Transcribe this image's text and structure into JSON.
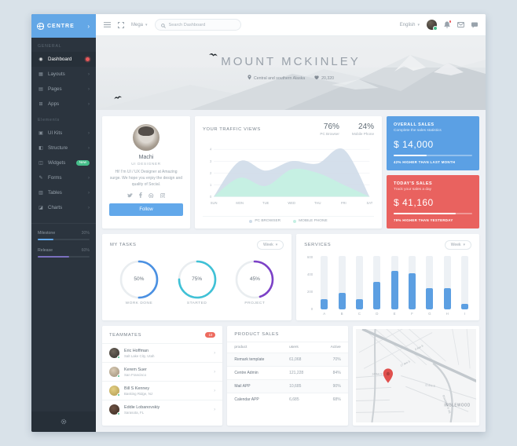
{
  "app": {
    "name": "CENTRE"
  },
  "sidebar": {
    "sections": {
      "general": "GENERAL",
      "elements": "Elements"
    },
    "items": [
      {
        "label": "Dashboard",
        "icon": "dashboard-icon",
        "active": true
      },
      {
        "label": "Layouts",
        "icon": "layouts-icon"
      },
      {
        "label": "Pages",
        "icon": "pages-icon"
      },
      {
        "label": "Apps",
        "icon": "apps-icon"
      },
      {
        "label": "UI Kits",
        "icon": "ui-kits-icon"
      },
      {
        "label": "Structure",
        "icon": "structure-icon"
      },
      {
        "label": "Widgets",
        "icon": "widgets-icon",
        "badge": "New"
      },
      {
        "label": "Forms",
        "icon": "forms-icon"
      },
      {
        "label": "Tables",
        "icon": "tables-icon"
      },
      {
        "label": "Charts",
        "icon": "charts-icon"
      }
    ],
    "progress": [
      {
        "label": "Milestone",
        "value": "30%",
        "percent": 30,
        "color": "#62a8ea"
      },
      {
        "label": "Release",
        "value": "60%",
        "percent": 60,
        "color": "#7a6fbe"
      }
    ]
  },
  "header": {
    "mega_label": "Mega",
    "search_placeholder": "Search Dashboard",
    "language": "English"
  },
  "hero": {
    "title": "MOUNT MCKINLEY",
    "location": "Central and southern Alaska",
    "likes": "20,320"
  },
  "profile": {
    "name": "Machi",
    "role": "UI DESIGNER",
    "bio": "Hi! I'm UI / UX Designer at Amazing surge. We hope you enjoy the design and quality of Social.",
    "follow_label": "Follow"
  },
  "traffic": {
    "title": "YOUR TRAFFIC VIEWS",
    "stats": [
      {
        "value": "76%",
        "label": "PC Browser"
      },
      {
        "value": "24%",
        "label": "Mobile Phone"
      }
    ]
  },
  "sales_cards": [
    {
      "title": "OVERALL SALES",
      "subtitle": "Complete the sales statistics",
      "amount": "$ 14,000",
      "note": "42% HIGHER THAN LAST MONTH",
      "percent": 42,
      "color": "#5ba0e4"
    },
    {
      "title": "TODAY'S SALES",
      "subtitle": "Track your sales a day",
      "amount": "$ 41,160",
      "note": "79% HIGHER THAN YESTERDAY",
      "percent": 79,
      "color": "#e9625f"
    }
  ],
  "tasks": {
    "title": "MY TASKS",
    "range_label": "Week"
  },
  "services": {
    "title": "SERVICES",
    "range_label": "Week"
  },
  "teammates": {
    "title": "TEAMMATES",
    "badge": "10",
    "members": [
      {
        "name": "Eric Hoffman",
        "location": "Salt Lake City, Utah"
      },
      {
        "name": "Kerem Suer",
        "location": "San Francisco"
      },
      {
        "name": "Bill S Kenney",
        "location": "Basking Ridge, NJ"
      },
      {
        "name": "Eddie Lobanovskiy",
        "location": "Sarasota, FL"
      }
    ]
  },
  "product_sales": {
    "title": "PRODUCT SALES",
    "columns": [
      "product",
      "users",
      "Active"
    ],
    "rows": [
      {
        "product": "Remark template",
        "users": "61,068",
        "active": "70%"
      },
      {
        "product": "Centre Admin",
        "users": "121,228",
        "active": "84%"
      },
      {
        "product": "Mail APP",
        "users": "10,685",
        "active": "90%"
      },
      {
        "product": "Calendar APP",
        "users": "6,685",
        "active": "68%"
      }
    ]
  },
  "map": {
    "region_label": "INGLEWOOD",
    "street_labels": [
      "9 Ave S",
      "11 Ave S",
      "17 Ave S",
      "14 Ave S",
      "Blackfoot Tr SE"
    ]
  },
  "chart_data": [
    {
      "id": "traffic-area",
      "type": "area",
      "title": "YOUR TRAFFIC VIEWS",
      "x": [
        "SUN",
        "MON",
        "TUE",
        "WED",
        "THU",
        "FRI",
        "SAT"
      ],
      "ylim": [
        0,
        4
      ],
      "yticks": [
        0,
        1,
        2,
        3,
        4
      ],
      "grid": true,
      "legend_position": "bottom",
      "series": [
        {
          "name": "PC BROWSER",
          "color": "#cfdce9",
          "opacity": 0.9,
          "values": [
            0,
            3.0,
            2.2,
            3.0,
            2.8,
            4.0,
            0
          ]
        },
        {
          "name": "MOBILE PHONE",
          "color": "#c5f0e3",
          "opacity": 0.95,
          "values": [
            0,
            1.6,
            0.9,
            2.3,
            2.0,
            1.0,
            0
          ]
        }
      ]
    },
    {
      "id": "tasks-donuts",
      "type": "pie",
      "title": "MY TASKS",
      "items": [
        {
          "label": "WORK DONE",
          "percent": 50,
          "color": "#4a90e2"
        },
        {
          "label": "STARTED",
          "percent": 75,
          "color": "#3fc1d6"
        },
        {
          "label": "PROJECT",
          "percent": 45,
          "color": "#7c41c7"
        }
      ]
    },
    {
      "id": "services-bars",
      "type": "bar",
      "title": "SERVICES",
      "categories": [
        "A",
        "B",
        "C",
        "D",
        "E",
        "F",
        "G",
        "H",
        "I"
      ],
      "values": [
        120,
        190,
        120,
        320,
        450,
        420,
        250,
        250,
        60
      ],
      "yticks": [
        0,
        200,
        400,
        600
      ],
      "ylim": [
        0,
        620
      ],
      "bar_color": "#5c9fe2",
      "track_color": "#edf1f5"
    }
  ]
}
